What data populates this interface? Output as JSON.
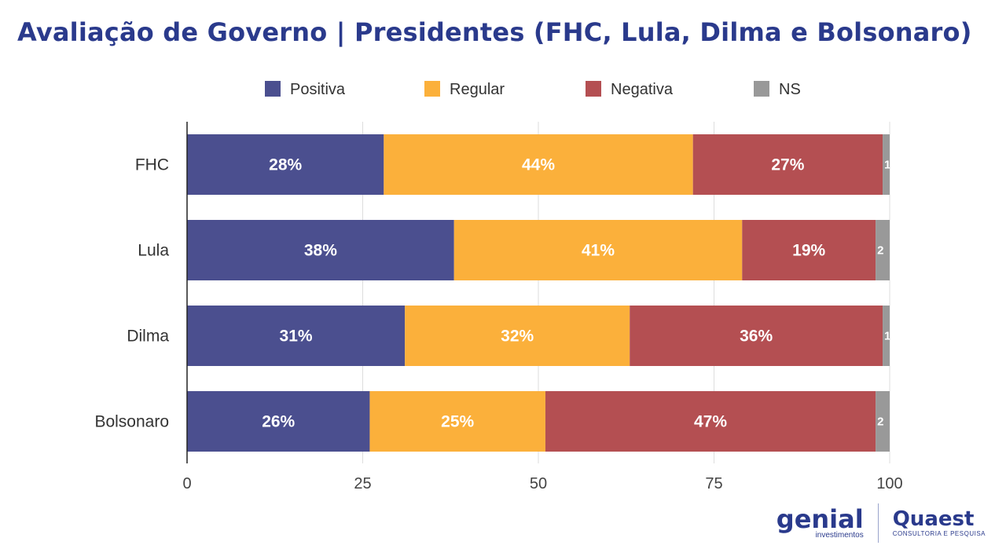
{
  "title": "Avaliação de Governo | Presidentes (FHC, Lula, Dilma e Bolsonaro)",
  "logos": {
    "genial": {
      "word": "genial",
      "sub": "investimentos"
    },
    "quaest": {
      "word": "Quaest",
      "sub": "CONSULTORIA E PESQUISA"
    }
  },
  "chart_data": {
    "type": "bar",
    "orientation": "horizontal",
    "stacked": true,
    "categories": [
      "FHC",
      "Lula",
      "Dilma",
      "Bolsonaro"
    ],
    "series": [
      {
        "name": "Positiva",
        "color": "#4b4f8f",
        "values": [
          28,
          38,
          31,
          26
        ],
        "labels": [
          "28%",
          "38%",
          "31%",
          "26%"
        ]
      },
      {
        "name": "Regular",
        "color": "#fbb03b",
        "values": [
          44,
          41,
          32,
          25
        ],
        "labels": [
          "44%",
          "41%",
          "32%",
          "25%"
        ]
      },
      {
        "name": "Negativa",
        "color": "#b44f52",
        "values": [
          27,
          19,
          36,
          47
        ],
        "labels": [
          "27%",
          "19%",
          "36%",
          "47%"
        ]
      },
      {
        "name": "NS",
        "color": "#999999",
        "values": [
          1,
          2,
          1,
          2
        ],
        "labels": [
          "1",
          "2",
          "1",
          "2"
        ]
      }
    ],
    "xlim": [
      0,
      100
    ],
    "xticks": [
      0,
      25,
      50,
      75,
      100
    ],
    "grid": true,
    "legend": "top"
  }
}
